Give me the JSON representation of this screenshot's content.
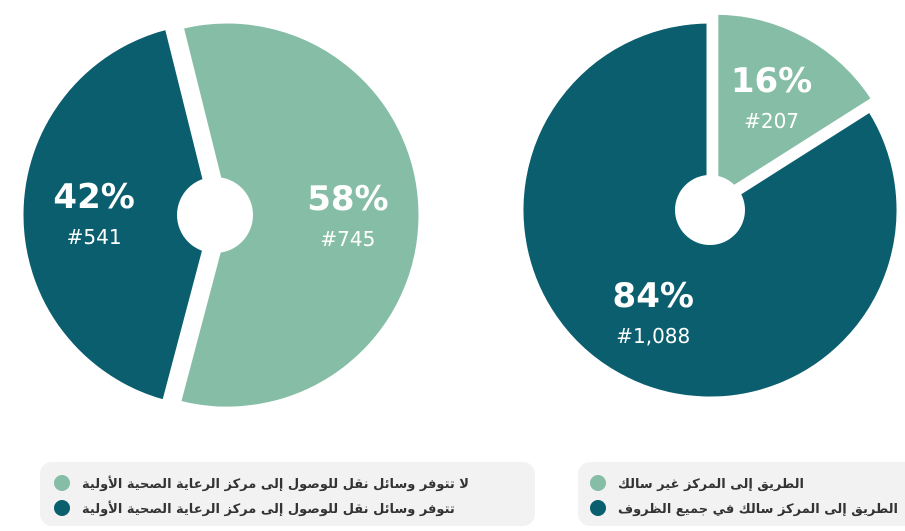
{
  "chart_data": [
    {
      "type": "pie",
      "categories": [
        "لا تتوفر وسائل نقل للوصول إلى مركز الرعاية الصحية الأولية",
        "تتوفر وسائل نقل للوصول إلى مركز الرعاية الصحية الأولية"
      ],
      "values": [
        58,
        42
      ],
      "value_labels": [
        "58%",
        "42%"
      ],
      "counts": [
        745,
        541
      ],
      "count_labels": [
        "#745",
        "#541"
      ],
      "colors": [
        "#86bda6",
        "#0a5e6e"
      ]
    },
    {
      "type": "pie",
      "categories": [
        "الطريق إلى المركز غير سالك",
        "الطريق إلى المركز سالك في جميع الظروف"
      ],
      "values": [
        16,
        84
      ],
      "value_labels": [
        "16%",
        "84%"
      ],
      "counts": [
        207,
        1088
      ],
      "count_labels": [
        "#207",
        "#1,088"
      ],
      "colors": [
        "#86bda6",
        "#0a5e6e"
      ]
    }
  ]
}
